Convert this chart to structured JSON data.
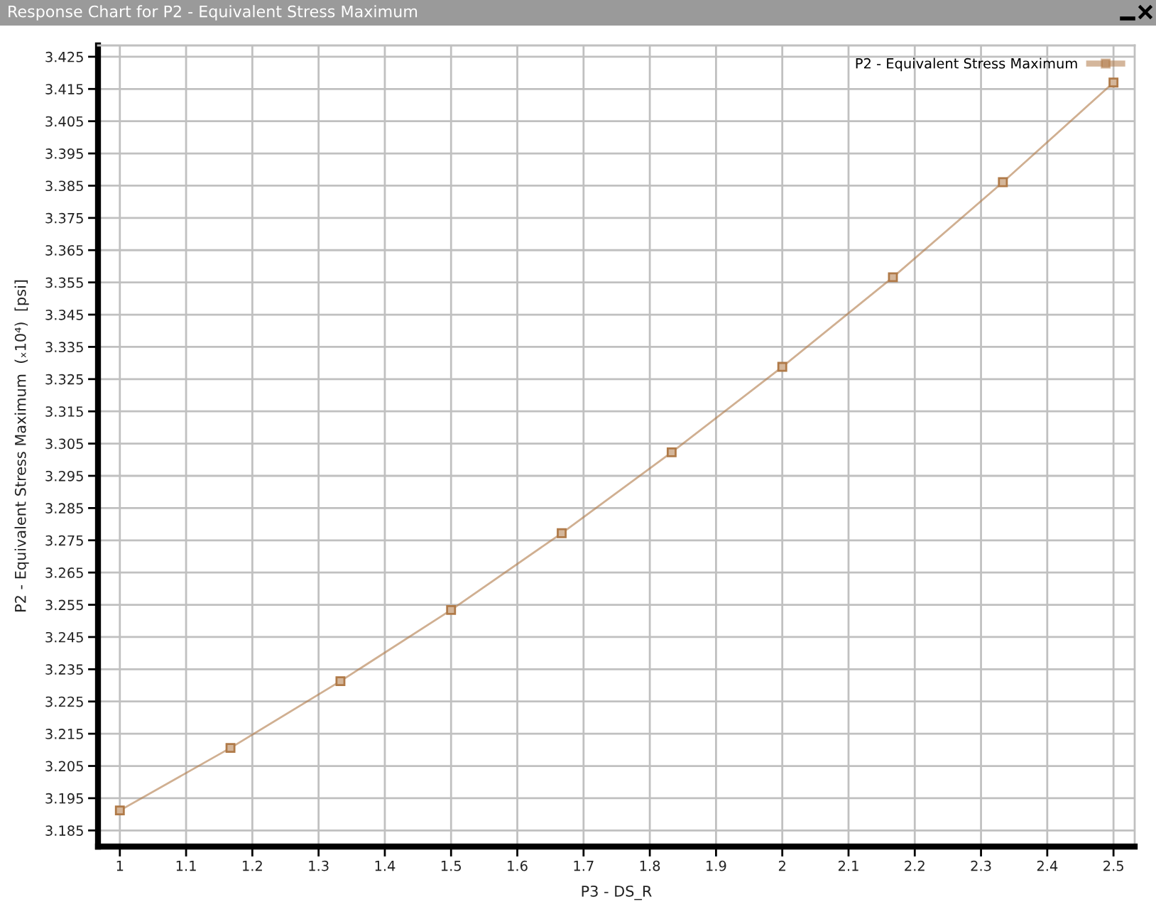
{
  "chart_data": {
    "type": "line",
    "title": "Response Chart for P2 - Equivalent Stress Maximum",
    "xlabel": "P3 - DS_R",
    "ylabel": "P2 - Equivalent Stress Maximum  (ₓ10⁴)  [psi]",
    "x": [
      1,
      1.167,
      1.333,
      1.5,
      1.667,
      1.833,
      2,
      2.167,
      2.333,
      2.5
    ],
    "series": [
      {
        "name": "P2 - Equivalent Stress Maximum",
        "color": "#b07a48",
        "values": [
          3.1912,
          3.2106,
          3.2313,
          3.2534,
          3.2772,
          3.3023,
          3.3288,
          3.3566,
          3.3861,
          3.417
        ]
      }
    ],
    "xlim": [
      0.967,
      2.532
    ],
    "ylim": [
      3.18,
      3.4285
    ],
    "xticks": [
      1,
      1.1,
      1.2,
      1.3,
      1.4,
      1.5,
      1.6,
      1.7,
      1.8,
      1.9,
      2,
      2.1,
      2.2,
      2.3,
      2.4,
      2.5
    ],
    "yticks": [
      3.185,
      3.195,
      3.205,
      3.215,
      3.225,
      3.235,
      3.245,
      3.255,
      3.265,
      3.275,
      3.285,
      3.295,
      3.305,
      3.315,
      3.325,
      3.335,
      3.345,
      3.355,
      3.365,
      3.375,
      3.385,
      3.395,
      3.405,
      3.415,
      3.425
    ],
    "grid": true,
    "legend": "top right",
    "marker": "square",
    "line_style": "solid"
  }
}
